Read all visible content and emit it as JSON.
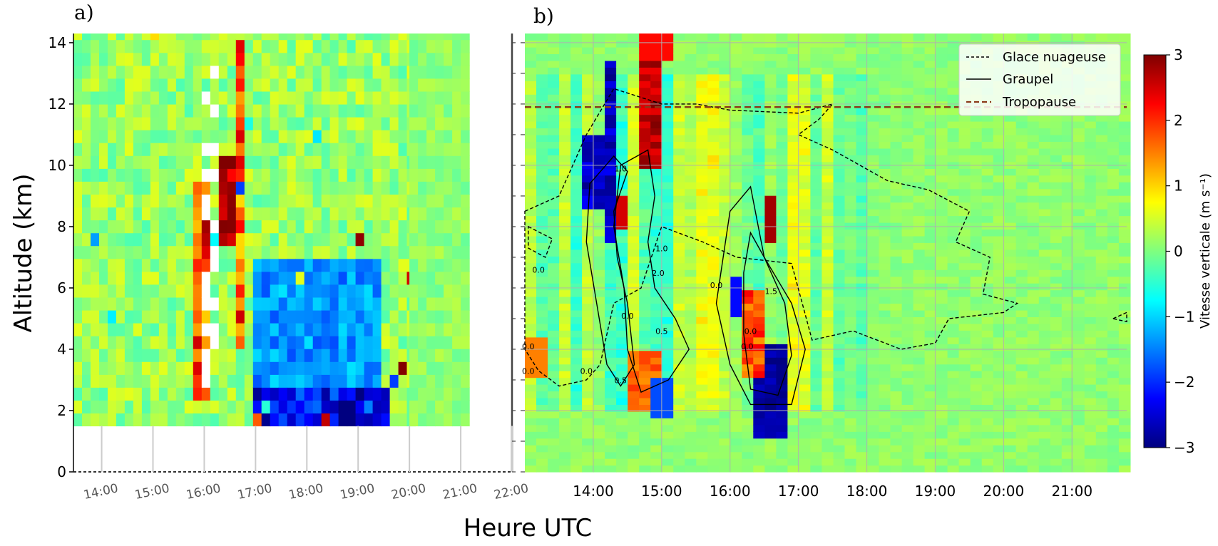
{
  "figure": {
    "panel_a_label": "a)",
    "panel_b_label": "b)",
    "xlabel": "Heure UTC",
    "ylabel": "Altitude (km)",
    "colorbar_label": "Vitesse verticale (m s⁻¹)"
  },
  "chart_data": [
    {
      "type": "heatmap",
      "panel": "a)",
      "title": "",
      "xlabel": "Heure UTC",
      "ylabel": "Altitude (km)",
      "x_ticks": [
        "14:00",
        "15:00",
        "16:00",
        "17:00",
        "18:00",
        "19:00",
        "20:00",
        "21:00",
        "22:00"
      ],
      "x_tick_values": [
        14,
        15,
        16,
        17,
        18,
        19,
        20,
        21,
        22
      ],
      "xlim": [
        13.45,
        22.0
      ],
      "y_ticks": [
        "0",
        "2",
        "4",
        "6",
        "8",
        "10",
        "12",
        "14"
      ],
      "ylim": [
        0,
        14.3
      ],
      "data_bottom_km": 1.5,
      "colormap": "jet",
      "clim": [
        -3,
        3
      ],
      "features": [
        {
          "name": "updraft column",
          "time": "16:00-16:40",
          "alt_km": [
            8,
            10
          ],
          "w": 3
        },
        {
          "name": "downdraft region",
          "time": "17:00-19:30",
          "alt_km": [
            2,
            7
          ],
          "w": -1.5
        },
        {
          "name": "strong downdraft",
          "time": "18:10-19:30",
          "alt_km": [
            1.5,
            2.5
          ],
          "w": -2.8
        },
        {
          "name": "missing data column",
          "time": "16:00-16:30",
          "alt_km": [
            2.5,
            14
          ],
          "w": null
        }
      ],
      "grid": false
    },
    {
      "type": "heatmap",
      "panel": "b)",
      "title": "",
      "xlabel": "Heure UTC",
      "ylabel": "",
      "x_ticks": [
        "14:00",
        "15:00",
        "16:00",
        "17:00",
        "18:00",
        "19:00",
        "20:00",
        "21:00"
      ],
      "x_tick_values": [
        14,
        15,
        16,
        17,
        18,
        19,
        20,
        21
      ],
      "xlim": [
        13.0,
        21.8
      ],
      "ylim": [
        0,
        14.3
      ],
      "colormap": "jet",
      "clim": [
        -3,
        3
      ],
      "colorbar_ticks": [
        "3",
        "2",
        "1",
        "0",
        "−1",
        "−2",
        "−3"
      ],
      "features": [
        {
          "name": "downdraft core",
          "time": "14:10-14:30",
          "alt_km": [
            8,
            13
          ],
          "w": -3
        },
        {
          "name": "updraft core",
          "time": "14:45-15:00",
          "alt_km": [
            10,
            12
          ],
          "w": 3
        },
        {
          "name": "downdraft core",
          "time": "16:25-16:50",
          "alt_km": [
            1,
            4
          ],
          "w": -3
        },
        {
          "name": "updraft core",
          "time": "16:30-16:40",
          "alt_km": [
            8,
            9
          ],
          "w": 3
        }
      ],
      "tropopause_km": 11.9,
      "legend": {
        "placement": "top-right",
        "entries": [
          {
            "label": "Glace nuageuse",
            "style": "dashed",
            "color": "#000000"
          },
          {
            "label": "Graupel",
            "style": "solid",
            "color": "#000000"
          },
          {
            "label": "Tropopause",
            "style": "dashed",
            "color": "#8b3a1a"
          }
        ]
      },
      "contour_labels": [
        "0.0",
        "0.0",
        "0.0",
        "0.0",
        "0.0",
        "0.0",
        "0.0",
        "0.5",
        "1.0",
        "1.0",
        "2.0",
        "1.5",
        "0.0",
        "0.5"
      ],
      "grid": true
    }
  ]
}
